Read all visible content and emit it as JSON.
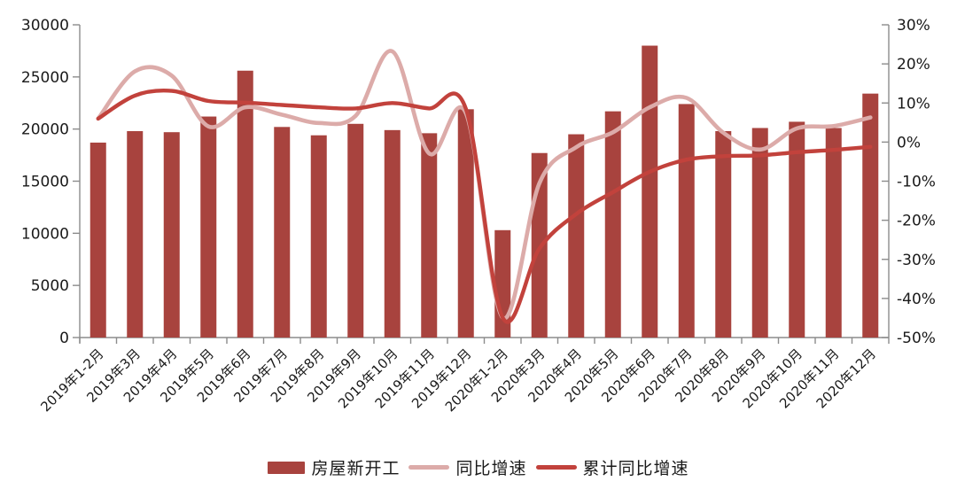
{
  "chart_data": {
    "type": "bar",
    "subtype": "combo-bar-smooth-lines",
    "title": "",
    "categories": [
      "2019年1-2月",
      "2019年3月",
      "2019年4月",
      "2019年5月",
      "2019年6月",
      "2019年7月",
      "2019年8月",
      "2019年9月",
      "2019年10月",
      "2019年11月",
      "2019年12月",
      "2020年1-2月",
      "2020年3月",
      "2020年4月",
      "2020年5月",
      "2020年6月",
      "2020年7月",
      "2020年8月",
      "2020年9月",
      "2020年10月",
      "2020年11月",
      "2020年12月"
    ],
    "bar_series": {
      "name": "房屋新开工",
      "axis": "left",
      "color": "#a8433e",
      "values": [
        18700,
        19800,
        19700,
        21200,
        25600,
        20200,
        19400,
        20500,
        19900,
        19600,
        21900,
        10300,
        17700,
        19500,
        21700,
        28000,
        22400,
        19800,
        20100,
        20700,
        20100,
        23400
      ]
    },
    "line_series": [
      {
        "name": "同比增速",
        "axis": "right",
        "color": "#dcaba9",
        "stroke_width": 4.6,
        "values_pct": [
          6.0,
          18.1,
          17.0,
          4.0,
          8.9,
          7.0,
          4.9,
          6.7,
          23.2,
          -2.9,
          7.4,
          -44.9,
          -10.5,
          -1.3,
          2.5,
          8.9,
          11.3,
          2.4,
          -1.9,
          3.5,
          4.1,
          6.3
        ]
      },
      {
        "name": "累计同比增速",
        "axis": "right",
        "color": "#c2423c",
        "stroke_width": 4.4,
        "values_pct": [
          6.0,
          11.9,
          13.1,
          10.5,
          10.1,
          9.5,
          8.9,
          8.6,
          10.0,
          8.6,
          8.5,
          -44.9,
          -27.2,
          -18.4,
          -12.8,
          -7.6,
          -4.5,
          -3.6,
          -3.4,
          -2.6,
          -2.0,
          -1.2
        ]
      }
    ],
    "left_axis": {
      "min": 0,
      "max": 30000,
      "step": 5000,
      "tick_labels": [
        "0",
        "5000",
        "10000",
        "15000",
        "20000",
        "25000",
        "30000"
      ]
    },
    "right_axis": {
      "min": -50,
      "max": 30,
      "step": 10,
      "tick_labels": [
        "-50%",
        "-40%",
        "-30%",
        "-20%",
        "-10%",
        "0%",
        "10%",
        "20%",
        "30%"
      ]
    },
    "grid": false,
    "legend_position": "bottom",
    "x_label_rotation_deg": -45
  },
  "style": {
    "axis_color": "#8c8c8c",
    "tick_text_color": "#1a1a1a",
    "background": "#ffffff"
  }
}
